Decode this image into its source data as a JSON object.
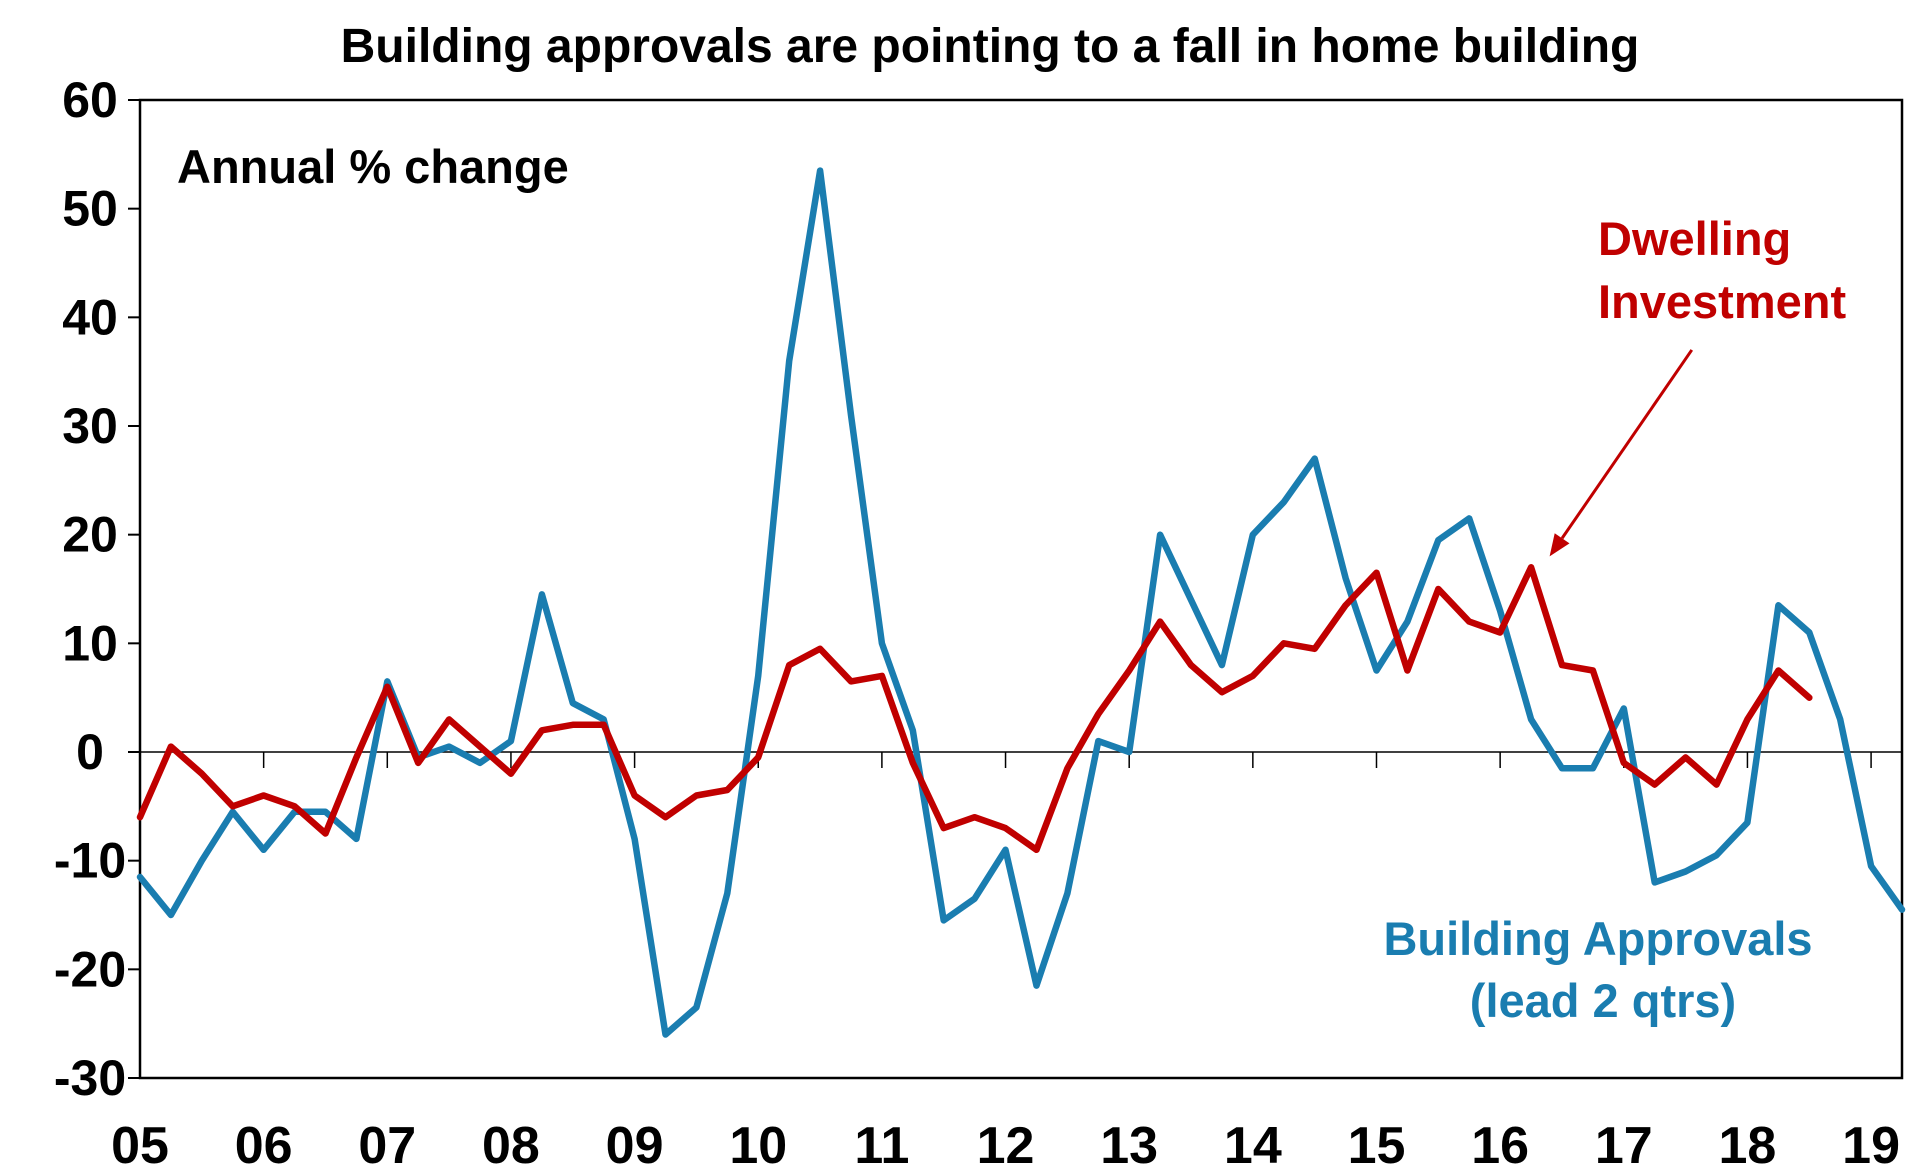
{
  "chart_data": {
    "type": "line",
    "title": "Building approvals are pointing to a fall in home building",
    "annotation": "Annual % change",
    "xlabel": "",
    "ylabel": "",
    "x_range": [
      2005,
      2019.25
    ],
    "ylim": [
      -30,
      60
    ],
    "y_ticks": [
      60,
      50,
      40,
      30,
      20,
      10,
      0,
      -10,
      -20,
      -30
    ],
    "y_tick_labels": [
      "60",
      "50",
      "40",
      "30",
      "20",
      "10",
      "0",
      "-10",
      "-20",
      "-30"
    ],
    "x_ticks": [
      2005,
      2006,
      2007,
      2008,
      2009,
      2010,
      2011,
      2012,
      2013,
      2014,
      2015,
      2016,
      2017,
      2018,
      2019
    ],
    "x_tick_labels": [
      "05",
      "06",
      "07",
      "08",
      "09",
      "10",
      "11",
      "12",
      "13",
      "14",
      "15",
      "16",
      "17",
      "18",
      "19"
    ],
    "grid": false,
    "series": [
      {
        "name": "Building Approvals (lead 2 qtrs)",
        "label_lines": [
          "Building Approvals",
          "(lead 2 qtrs)"
        ],
        "color": "#1A7DB0",
        "x_start": 2005,
        "x_step": 0.25,
        "values": [
          -11.5,
          -15,
          -10,
          -5.5,
          -9,
          -5.5,
          -5.5,
          -8,
          6.5,
          -0.5,
          0.5,
          -1,
          1,
          14.5,
          4.5,
          3,
          -8,
          -26,
          -23.5,
          -13,
          7,
          36,
          53.5,
          31,
          10,
          2,
          -15.5,
          -13.5,
          -9,
          -21.5,
          -13,
          1,
          0,
          20,
          14,
          8,
          20,
          23,
          27,
          16,
          7.5,
          12,
          19.5,
          21.5,
          13,
          3,
          -1.5,
          -1.5,
          4,
          -12,
          -11,
          -9.5,
          -6.5,
          13.5,
          11,
          3,
          -10.5,
          -14.5
        ]
      },
      {
        "name": "Dwelling Investment",
        "label_lines": [
          "Dwelling",
          "Investment"
        ],
        "color": "#C00000",
        "x_start": 2005,
        "x_step": 0.25,
        "values": [
          -6,
          0.5,
          -2,
          -5,
          -4,
          -5,
          -7.5,
          -0.5,
          6,
          -1,
          3,
          0.5,
          -2,
          2,
          2.5,
          2.5,
          -4,
          -6,
          -4,
          -3.5,
          -0.5,
          8,
          9.5,
          6.5,
          7,
          -1,
          -7,
          -6,
          -7,
          -9,
          -1.5,
          3.5,
          7.5,
          12,
          8,
          5.5,
          7,
          10,
          9.5,
          13.5,
          16.5,
          7.5,
          15,
          12,
          11,
          17,
          8,
          7.5,
          -1,
          -3,
          -0.5,
          -3,
          3,
          7.5,
          5
        ]
      }
    ],
    "arrow": {
      "points_to_series": "Dwelling Investment",
      "from": {
        "x": 2017.55,
        "y": 37
      },
      "to": {
        "x": 2016.4,
        "y": 18
      }
    }
  }
}
